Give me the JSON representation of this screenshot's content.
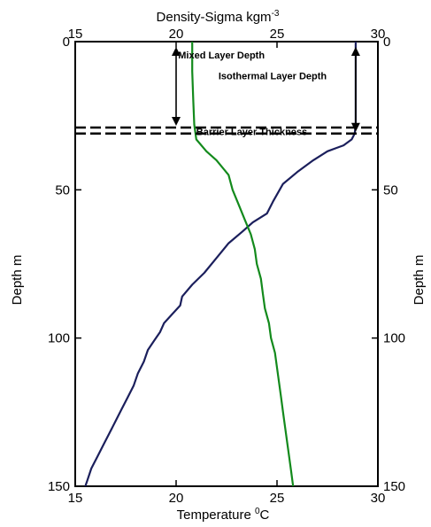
{
  "chart_data": {
    "type": "line",
    "title": "",
    "top_axis_label": "Density-Sigma kgm",
    "top_axis_label_sup": "-3",
    "bottom_axis_label": "Temperature ",
    "bottom_axis_label_sup": "0",
    "bottom_axis_label_unit": "C",
    "left_axis_label": "Depth m",
    "right_axis_label": "Depth m",
    "x_range": [
      15,
      30
    ],
    "y_range": [
      0,
      150
    ],
    "y_inverted": true,
    "bottom_ticks": [
      "15",
      "20",
      "25",
      "30"
    ],
    "top_ticks": [
      "15",
      "20",
      "25",
      "30"
    ],
    "left_ticks": [
      "0",
      "50",
      "100",
      "150"
    ],
    "right_ticks": [
      "0",
      "50",
      "100",
      "150"
    ],
    "grid": false,
    "series": [
      {
        "color": "#1b1f5c",
        "points": [
          [
            28.9,
            0
          ],
          [
            28.9,
            10
          ],
          [
            28.9,
            20
          ],
          [
            28.9,
            28
          ],
          [
            28.85,
            31
          ],
          [
            28.7,
            33
          ],
          [
            28.3,
            35
          ],
          [
            27.5,
            37
          ],
          [
            26.8,
            40
          ],
          [
            26.0,
            44
          ],
          [
            25.3,
            48
          ],
          [
            24.8,
            54
          ],
          [
            24.5,
            58
          ],
          [
            23.8,
            61
          ],
          [
            23.3,
            64
          ],
          [
            22.6,
            68
          ],
          [
            22.0,
            73
          ],
          [
            21.4,
            78
          ],
          [
            20.8,
            82
          ],
          [
            20.3,
            86
          ],
          [
            20.2,
            89
          ],
          [
            19.8,
            92
          ],
          [
            19.4,
            95
          ],
          [
            19.2,
            98
          ],
          [
            18.9,
            101
          ],
          [
            18.6,
            104
          ],
          [
            18.4,
            108
          ],
          [
            18.1,
            112
          ],
          [
            17.9,
            116
          ],
          [
            17.6,
            120
          ],
          [
            17.3,
            124
          ],
          [
            17.0,
            128
          ],
          [
            16.7,
            132
          ],
          [
            16.4,
            136
          ],
          [
            16.1,
            140
          ],
          [
            15.8,
            144
          ],
          [
            15.6,
            148
          ],
          [
            15.5,
            150
          ]
        ]
      },
      {
        "color": "#138a1c",
        "points": [
          [
            20.8,
            0
          ],
          [
            20.8,
            10
          ],
          [
            20.85,
            20
          ],
          [
            20.9,
            28
          ],
          [
            21.0,
            33
          ],
          [
            21.5,
            37
          ],
          [
            22.0,
            40
          ],
          [
            22.6,
            45
          ],
          [
            22.8,
            50
          ],
          [
            23.1,
            55
          ],
          [
            23.4,
            60
          ],
          [
            23.7,
            65
          ],
          [
            23.9,
            70
          ],
          [
            24.0,
            75
          ],
          [
            24.2,
            80
          ],
          [
            24.3,
            85
          ],
          [
            24.4,
            90
          ],
          [
            24.6,
            95
          ],
          [
            24.7,
            100
          ],
          [
            24.9,
            105
          ],
          [
            25.0,
            110
          ],
          [
            25.1,
            115
          ],
          [
            25.2,
            120
          ],
          [
            25.3,
            125
          ],
          [
            25.4,
            130
          ],
          [
            25.5,
            135
          ],
          [
            25.6,
            140
          ],
          [
            25.7,
            145
          ],
          [
            25.8,
            150
          ]
        ]
      }
    ],
    "annotations": {
      "mixed_layer_depth": "Mixed Layer Depth",
      "isothermal_layer_depth": "Isothermal Layer Depth",
      "barrier_layer_thickness": "Barrier Layer Thickness",
      "mixed_layer_bottom": 29,
      "isothermal_layer_bottom": 31
    }
  }
}
